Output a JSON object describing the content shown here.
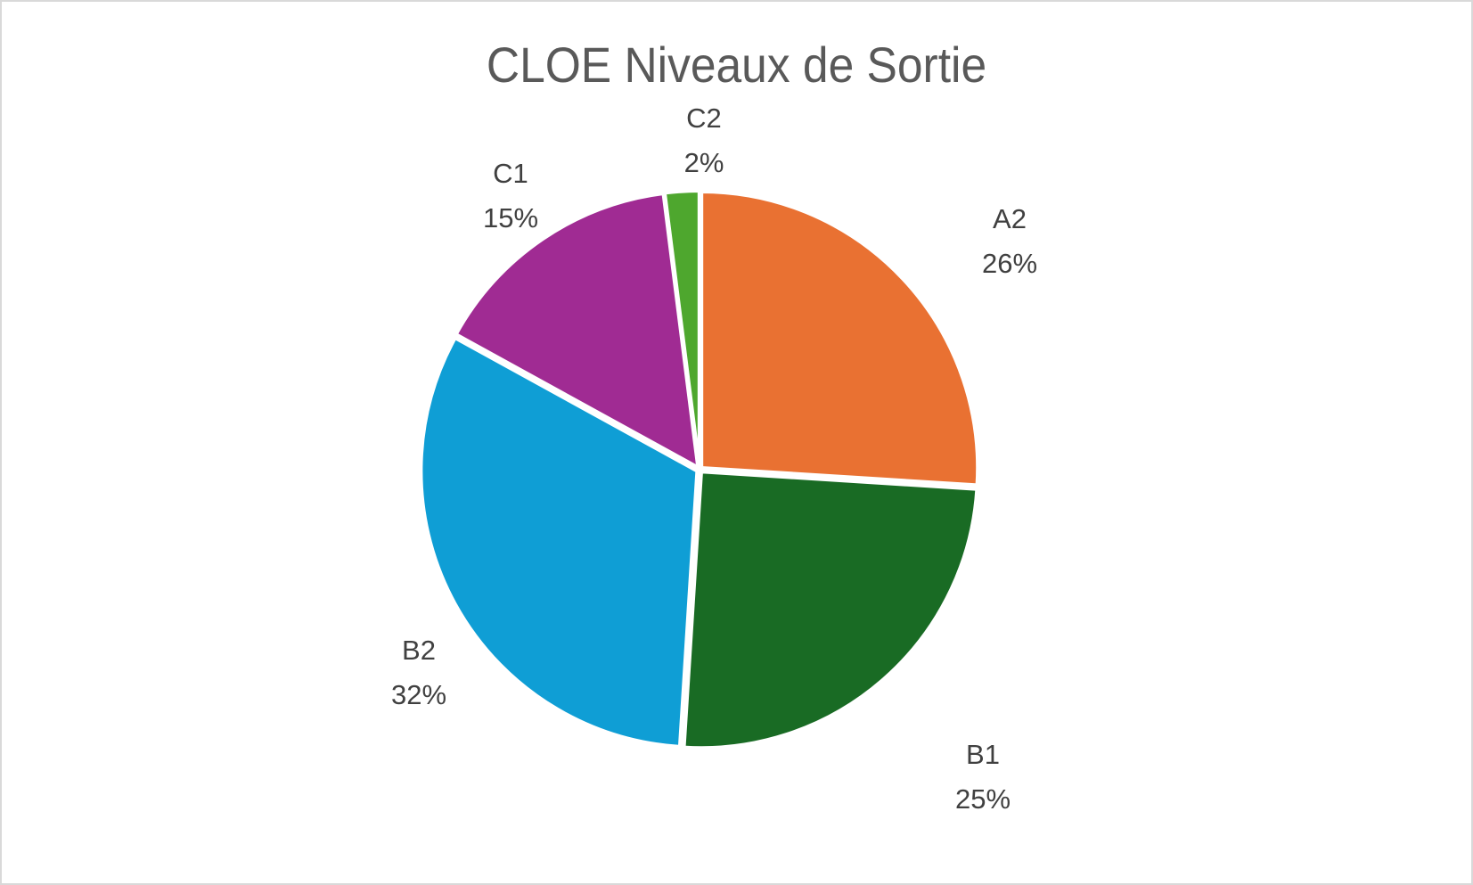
{
  "chart_data": {
    "type": "pie",
    "title": "CLOE Niveaux de Sortie",
    "categories": [
      "A2",
      "B1",
      "B2",
      "C1",
      "C2"
    ],
    "values": [
      26,
      25,
      32,
      15,
      2
    ],
    "unit": "%",
    "colors": [
      "#E97132",
      "#196B24",
      "#0F9ED5",
      "#A02B93",
      "#4EA72E"
    ],
    "legend": "none (data labels with category name and percentage)"
  },
  "labels": {
    "A2": {
      "name": "A2",
      "pct": "26%"
    },
    "B1": {
      "name": "B1",
      "pct": "25%"
    },
    "B2": {
      "name": "B2",
      "pct": "32%"
    },
    "C1": {
      "name": "C1",
      "pct": "15%"
    },
    "C2": {
      "name": "C2",
      "pct": "2%"
    }
  }
}
